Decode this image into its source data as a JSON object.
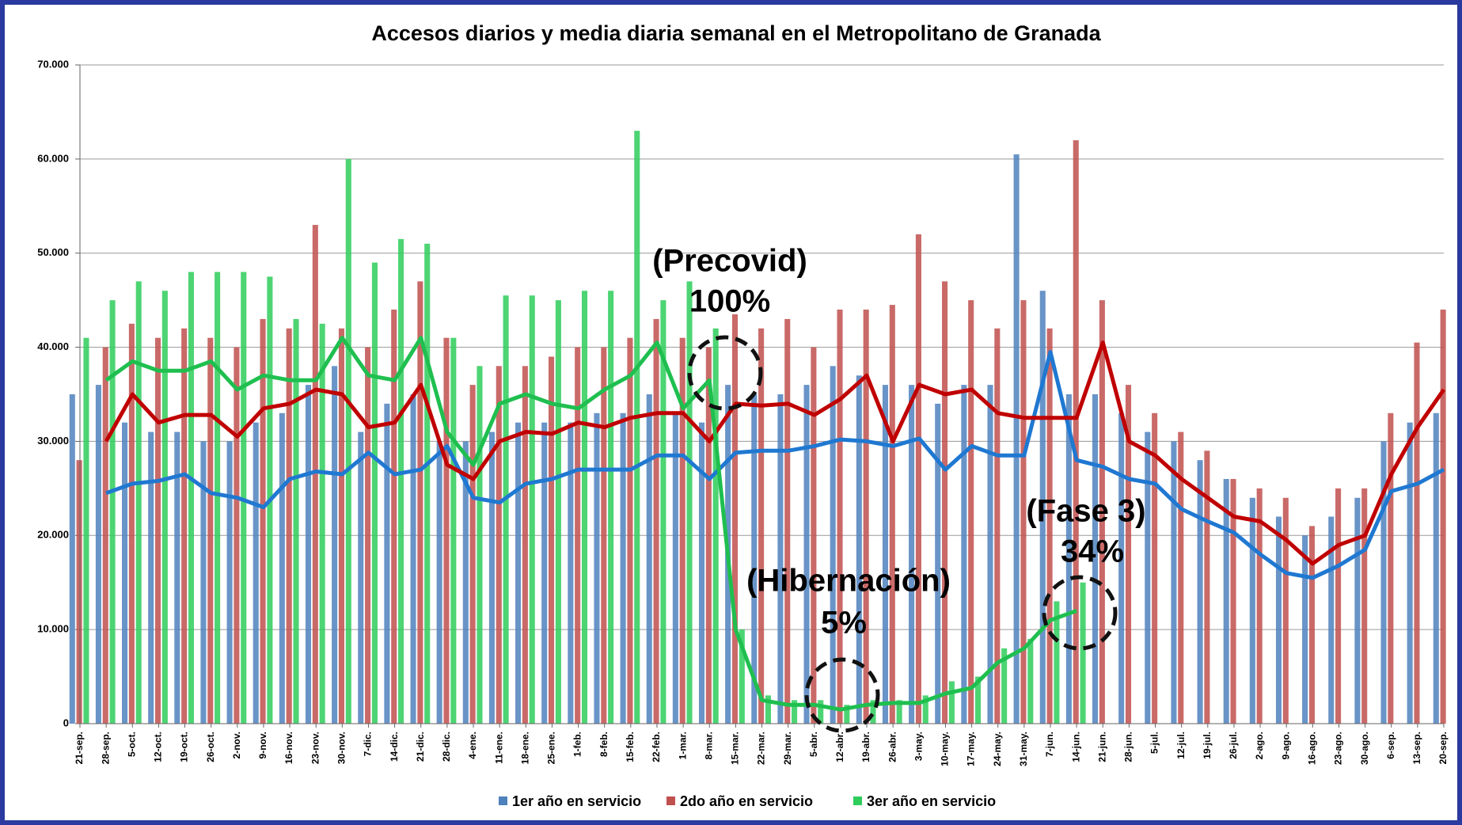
{
  "chart_data": {
    "type": "bar_line",
    "title": "Accesos diarios y media diaria semanal en el Metropolitano de Granada",
    "categories": [
      "21-sep.",
      "28-sep.",
      "5-oct.",
      "12-oct.",
      "19-oct.",
      "26-oct.",
      "2-nov.",
      "9-nov.",
      "16-nov.",
      "23-nov.",
      "30-nov.",
      "7-dic.",
      "14-dic.",
      "21-dic.",
      "28-dic.",
      "4-ene.",
      "11-ene.",
      "18-ene.",
      "25-ene.",
      "1-feb.",
      "8-feb.",
      "15-feb.",
      "22-feb.",
      "1-mar.",
      "8-mar.",
      "15-mar.",
      "22-mar.",
      "29-mar.",
      "5-abr.",
      "12-abr.",
      "19-abr.",
      "26-abr.",
      "3-may.",
      "10-may.",
      "17-may.",
      "24-may.",
      "31-may.",
      "7-jun.",
      "14-jun.",
      "21-jun.",
      "28-jun.",
      "5-jul.",
      "12-jul.",
      "19-jul.",
      "26-jul.",
      "2-ago.",
      "9-ago.",
      "16-ago.",
      "23-ago.",
      "30-ago.",
      "6-sep.",
      "13-sep.",
      "20-sep."
    ],
    "series": [
      {
        "name": "1er año en servicio",
        "color": "#4f81bd",
        "line_color": "#1f78d1",
        "values": [
          35000,
          36000,
          32000,
          31000,
          31000,
          30000,
          30000,
          32000,
          33000,
          36000,
          38000,
          31000,
          34000,
          35000,
          30000,
          30000,
          31000,
          32000,
          32000,
          32000,
          33000,
          33000,
          35000,
          33000,
          32000,
          36000,
          35000,
          35000,
          36000,
          38000,
          37000,
          36000,
          36000,
          34000,
          36000,
          36000,
          60500,
          46000,
          35000,
          35000,
          33000,
          31000,
          30000,
          28000,
          26000,
          24000,
          22000,
          20000,
          22000,
          24000,
          30000,
          32000,
          33000
        ],
        "line_values": [
          null,
          24500,
          25500,
          25800,
          26500,
          24500,
          24000,
          23000,
          26000,
          26800,
          26500,
          28800,
          26500,
          27000,
          29500,
          24000,
          23500,
          25500,
          26000,
          27000,
          27000,
          27000,
          28500,
          28500,
          26000,
          28800,
          29000,
          29000,
          29500,
          30200,
          30000,
          29500,
          30300,
          27000,
          29500,
          28500,
          28500,
          39500,
          28000,
          27300,
          26000,
          25500,
          22800,
          21500,
          20300,
          18000,
          16000,
          15500,
          16800,
          18500,
          24700,
          25500,
          27000
        ]
      },
      {
        "name": "2do año en servicio",
        "color": "#c0504d",
        "line_color": "#c00000",
        "values": [
          28000,
          40000,
          42500,
          41000,
          42000,
          41000,
          40000,
          43000,
          42000,
          53000,
          42000,
          40000,
          44000,
          47000,
          41000,
          36000,
          38000,
          38000,
          39000,
          40000,
          40000,
          41000,
          43000,
          41000,
          40000,
          43500,
          42000,
          43000,
          40000,
          44000,
          44000,
          44500,
          52000,
          47000,
          45000,
          42000,
          45000,
          42000,
          62000,
          45000,
          36000,
          33000,
          31000,
          29000,
          26000,
          25000,
          24000,
          21000,
          25000,
          25000,
          33000,
          40500,
          44000
        ],
        "line_values": [
          null,
          30000,
          35000,
          32000,
          32800,
          32800,
          30500,
          33500,
          34000,
          35500,
          35000,
          31500,
          32000,
          36000,
          27500,
          26000,
          30000,
          31000,
          30800,
          32000,
          31500,
          32500,
          33000,
          33000,
          30000,
          34000,
          33800,
          34000,
          32800,
          34500,
          37000,
          30000,
          36000,
          35000,
          35500,
          33000,
          32500,
          32500,
          32500,
          40500,
          30000,
          28500,
          26000,
          24000,
          22000,
          21500,
          19500,
          17000,
          19000,
          20000,
          26500,
          31500,
          35500
        ]
      },
      {
        "name": "3er año en servicio",
        "color": "#2ecc5a",
        "line_color": "#1fbf4f",
        "values": [
          41000,
          45000,
          47000,
          46000,
          48000,
          48000,
          48000,
          47500,
          43000,
          42500,
          60000,
          49000,
          51500,
          51000,
          41000,
          38000,
          45500,
          45500,
          45000,
          46000,
          46000,
          63000,
          45000,
          47000,
          42000,
          10000,
          3000,
          2500,
          2500,
          2000,
          2500,
          2500,
          3000,
          4500,
          5000,
          8000,
          9000,
          13000,
          15000,
          null,
          null,
          null,
          null,
          null,
          null,
          null,
          null,
          null,
          null,
          null,
          null,
          null,
          null
        ],
        "line_values": [
          null,
          36500,
          38500,
          37500,
          37500,
          38500,
          35500,
          37000,
          36500,
          36500,
          41000,
          37000,
          36500,
          41000,
          31000,
          27500,
          34000,
          35000,
          34000,
          33500,
          35500,
          37000,
          40500,
          33500,
          36500,
          10000,
          2500,
          2000,
          2000,
          1500,
          2000,
          2200,
          2200,
          3200,
          3800,
          6500,
          8000,
          11000,
          12000,
          null,
          null,
          null,
          null,
          null,
          null,
          null,
          null,
          null,
          null,
          null,
          null,
          null,
          null
        ]
      }
    ],
    "ylim": [
      0,
      70000
    ],
    "yticks": [
      0,
      {
        "value": 10000,
        "label": "10.000"
      },
      {
        "value": 20000,
        "label": "20.000"
      },
      {
        "value": 30000,
        "label": "30.000"
      },
      {
        "value": 40000,
        "label": "40.000"
      },
      {
        "value": 50000,
        "label": "50.000"
      },
      {
        "value": 60000,
        "label": "60.000"
      },
      {
        "value": 70000,
        "label": "70.000"
      }
    ],
    "grid": true,
    "legend": "bottom",
    "annotations": [
      "(Precovid)",
      "100%",
      "(Hibernación)",
      "5%",
      "(Fase 3)",
      "34%"
    ]
  }
}
